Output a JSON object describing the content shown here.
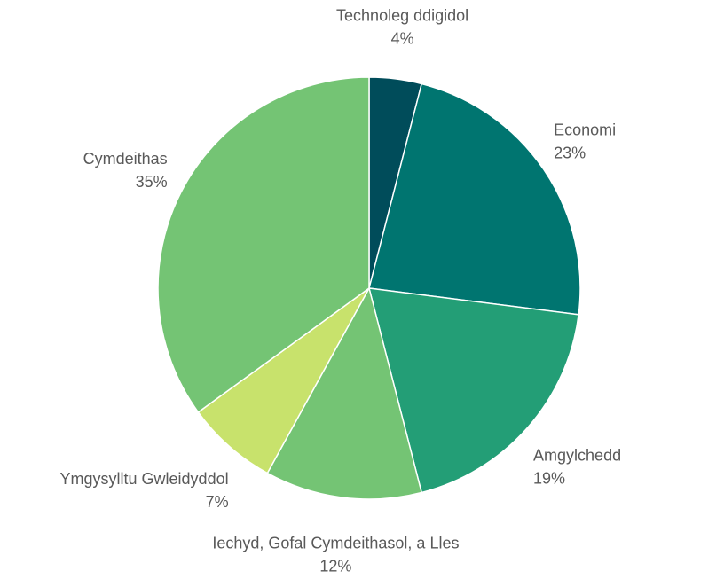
{
  "chart_data": {
    "type": "pie",
    "title": "",
    "slices": [
      {
        "label": "Technoleg ddigidol",
        "value": 4,
        "value_label": "4%",
        "color": "#004C5A"
      },
      {
        "label": "Economi",
        "value": 23,
        "value_label": "23%",
        "color": "#007570"
      },
      {
        "label": "Amgylchedd",
        "value": 19,
        "value_label": "19%",
        "color": "#239E76"
      },
      {
        "label": "Iechyd, Gofal Cymdeithasol, a Lles",
        "value": 12,
        "value_label": "12%",
        "color": "#74C474"
      },
      {
        "label": "Ymgysylltu Gwleidyddol",
        "value": 7,
        "value_label": "7%",
        "color": "#C8E26C"
      },
      {
        "label": "Cymdeithas",
        "value": 35,
        "value_label": "35%",
        "color": "#74C474"
      }
    ],
    "legend": "none",
    "data_labels": "outside"
  }
}
